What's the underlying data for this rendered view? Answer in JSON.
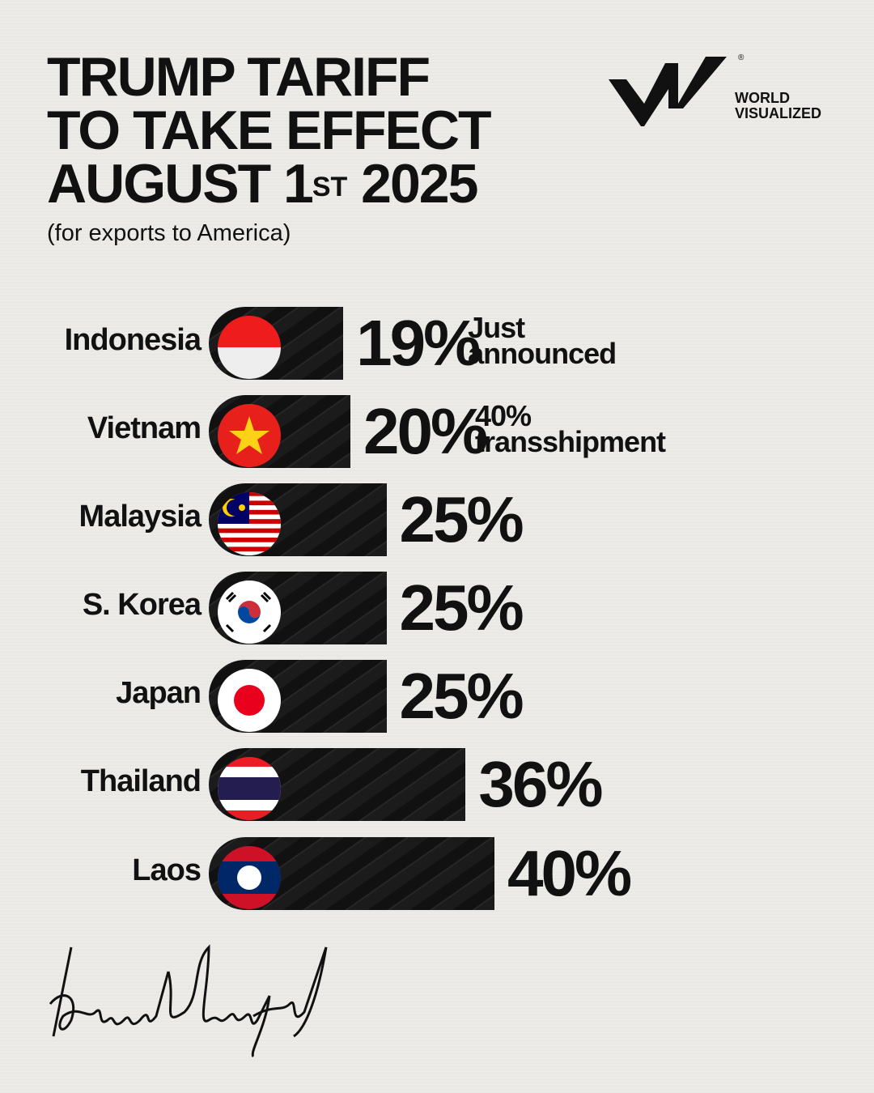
{
  "header": {
    "title_line1": "TRUMP TARIFF",
    "title_line2": "TO TAKE EFFECT",
    "title_line3_pre": "AUGUST 1",
    "title_line3_sup": "ST",
    "title_line3_post": " 2025",
    "subtitle": "(for exports to America)"
  },
  "logo": {
    "line1": "WORLD",
    "line2": "VISUALIZED",
    "mark": "WV",
    "registered": "®"
  },
  "signature": "Donald J Trump",
  "chart_data": {
    "type": "bar",
    "orientation": "horizontal",
    "categories": [
      "Indonesia",
      "Vietnam",
      "Malaysia",
      "S. Korea",
      "Japan",
      "Thailand",
      "Laos"
    ],
    "values": [
      19,
      20,
      25,
      25,
      25,
      36,
      40
    ],
    "value_labels": [
      "19%",
      "20%",
      "25%",
      "25%",
      "25%",
      "36%",
      "40%"
    ],
    "annotations": [
      [
        "Just",
        "announced"
      ],
      [
        "40%",
        "transshipment"
      ],
      null,
      null,
      null,
      null,
      null
    ],
    "flags": [
      "indonesia-flag",
      "vietnam-flag",
      "malaysia-flag",
      "south-korea-flag",
      "japan-flag",
      "thailand-flag",
      "laos-flag"
    ],
    "unit": "%",
    "bar_color": "#141414",
    "bar_texture_text": "TARIFFS"
  }
}
